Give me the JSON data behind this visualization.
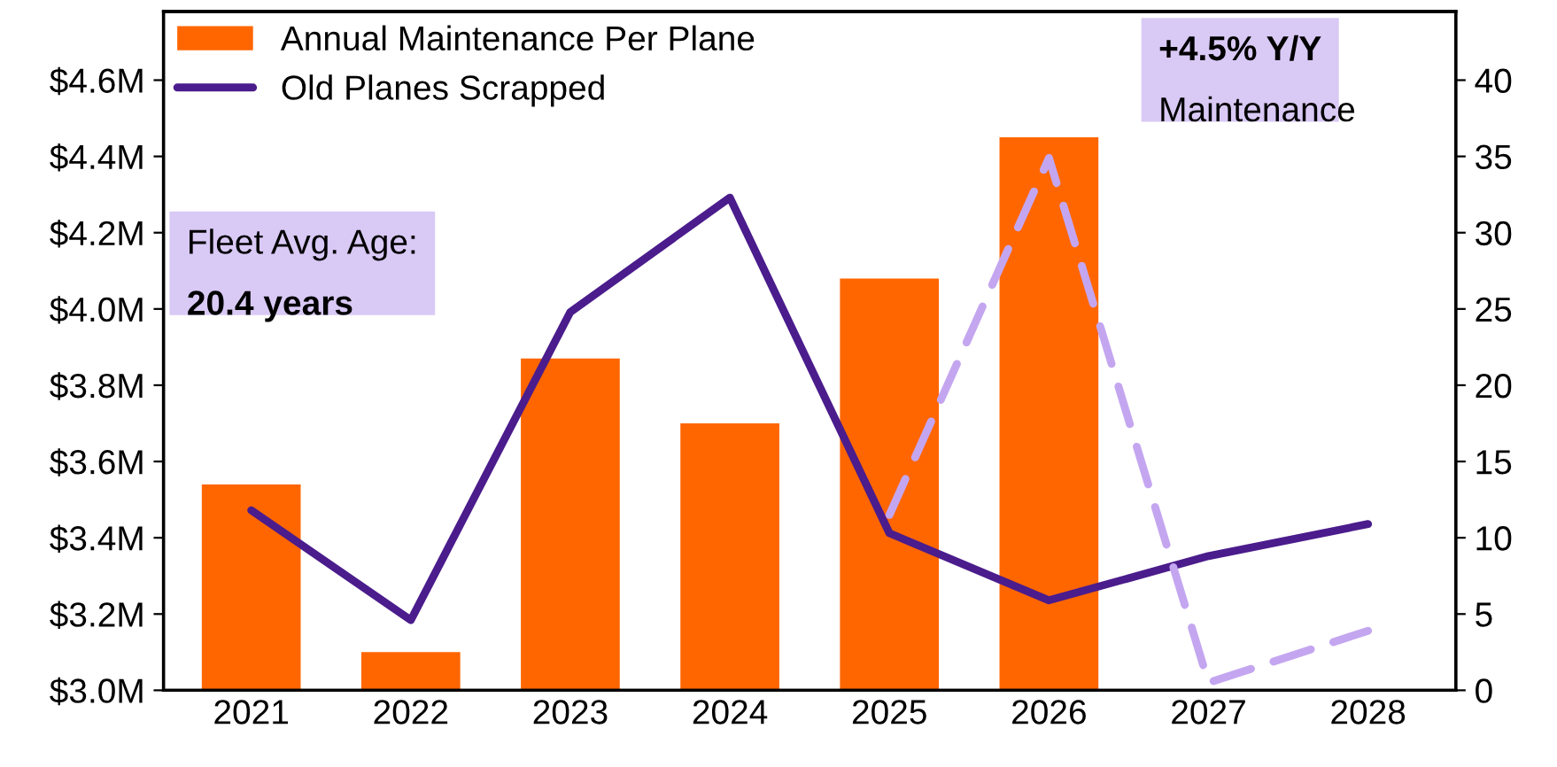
{
  "chart_data": {
    "type": "bar",
    "categories": [
      "2021",
      "2022",
      "2023",
      "2024",
      "2025",
      "2026",
      "2027",
      "2028"
    ],
    "series": [
      {
        "name": "Annual Maintenance Per Plane",
        "color": "#ff6600",
        "values": [
          3.54,
          3.1,
          3.87,
          3.7,
          4.08,
          4.45,
          null,
          null
        ]
      },
      {
        "name": "Old Planes Scrapped",
        "type": "line",
        "axis": "y2",
        "color": "#4b1c8c",
        "line_style": "solid",
        "values": [
          11.8,
          4.6,
          24.8,
          32.3,
          10.3,
          5.9,
          8.8,
          10.9
        ]
      },
      {
        "type": "line",
        "axis": "y2",
        "color": "#c4a6f0",
        "line_style": "dashed",
        "values": [
          null,
          null,
          null,
          null,
          11.5,
          34.9,
          0.5,
          3.9
        ]
      }
    ],
    "ylim": [
      3.0,
      4.78
    ],
    "yticks": [
      {
        "value": 3.0,
        "label": "$3.0M"
      },
      {
        "value": 3.2,
        "label": "$3.2M"
      },
      {
        "value": 3.4,
        "label": "$3.4M"
      },
      {
        "value": 3.6,
        "label": "$3.6M"
      },
      {
        "value": 3.8,
        "label": "$3.8M"
      },
      {
        "value": 4.0,
        "label": "$4.0M"
      },
      {
        "value": 4.2,
        "label": "$4.2M"
      },
      {
        "value": 4.4,
        "label": "$4.4M"
      },
      {
        "value": 4.6,
        "label": "$4.6M"
      }
    ],
    "y2lim": [
      0,
      44.5
    ],
    "y2ticks": [
      0,
      5,
      10,
      15,
      20,
      25,
      30,
      35,
      40
    ],
    "annotations": [
      "Fleet Avg. Age:",
      "20.4 years",
      "+4.5% Y/Y",
      "Maintenance"
    ],
    "legend": "top left",
    "grid": false,
    "marker": "none"
  }
}
